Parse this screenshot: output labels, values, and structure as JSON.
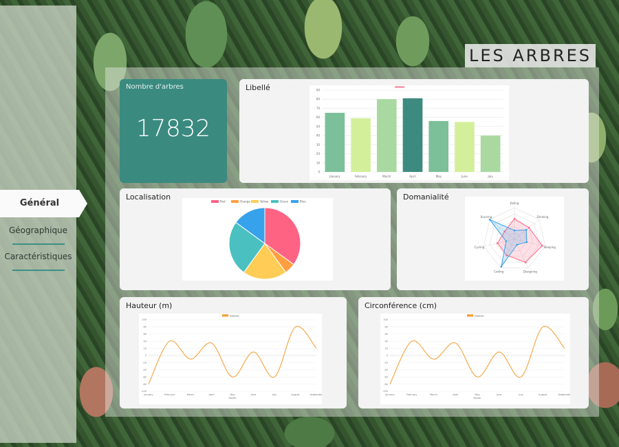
{
  "title": "LES ARBRES",
  "sidebar": {
    "items": [
      {
        "label": "Général",
        "active": true
      },
      {
        "label": "Géographique",
        "active": false
      },
      {
        "label": "Caractéristiques",
        "active": false
      }
    ]
  },
  "cards": {
    "count": {
      "title": "Nombre d'arbres",
      "value": "17832"
    },
    "libelle": {
      "title": "Libellé"
    },
    "localisation": {
      "title": "Localisation"
    },
    "domanialite": {
      "title": "Domanialité"
    },
    "hauteur": {
      "title": "Hauteur (m)"
    },
    "circonference": {
      "title": "Circonférence (cm)"
    }
  },
  "colors": {
    "teal": "#3a8a80",
    "bar_green": "#7cc09a",
    "bar_lime": "#d4ef9a",
    "bar_light": "#a9d9a0",
    "bar_dark": "#3c8a80",
    "line_orange": "#f4a23c",
    "pie_red": "#ff6384",
    "pie_orange": "#ff9f40",
    "pie_yellow": "#ffcd56",
    "pie_green": "#4bc0c0",
    "pie_blue": "#36a2eb"
  },
  "chart_data": [
    {
      "id": "libelle",
      "type": "bar",
      "categories": [
        "January",
        "February",
        "March",
        "April",
        "May",
        "June",
        "July"
      ],
      "values": [
        65,
        59,
        80,
        81,
        56,
        55,
        40
      ],
      "ylim": [
        0,
        90
      ],
      "yticks": [
        0,
        10,
        20,
        30,
        40,
        50,
        60,
        70,
        80,
        90
      ]
    },
    {
      "id": "localisation",
      "type": "pie",
      "labels": [
        "Red",
        "Orange",
        "Yellow",
        "Green",
        "Blue"
      ],
      "values": [
        35,
        5,
        20,
        25,
        15
      ],
      "legend": "top"
    },
    {
      "id": "domanialite",
      "type": "radar",
      "axes": [
        "Eating",
        "Drinking",
        "Sleeping",
        "Designing",
        "Coding",
        "Cycling",
        "Running"
      ],
      "series": [
        {
          "values": [
            65,
            59,
            90,
            81,
            56,
            55,
            40
          ]
        },
        {
          "values": [
            28,
            48,
            40,
            19,
            96,
            27,
            100
          ]
        }
      ]
    },
    {
      "id": "hauteur",
      "type": "line",
      "categories": [
        "January",
        "February",
        "March",
        "April",
        "May",
        "June",
        "July",
        "August",
        "September"
      ],
      "values": [
        -80,
        40,
        -10,
        35,
        -60,
        10,
        -60,
        80,
        20
      ],
      "ylim": [
        -100,
        100
      ],
      "yticks": [
        -100,
        -80,
        -60,
        -40,
        -20,
        0,
        20,
        40,
        60,
        80,
        100
      ],
      "series_label": "Dataset",
      "xlabel": "Month"
    },
    {
      "id": "circonference",
      "type": "line",
      "categories": [
        "January",
        "February",
        "March",
        "April",
        "May",
        "June",
        "July",
        "August",
        "September"
      ],
      "values": [
        -80,
        40,
        -10,
        35,
        -60,
        10,
        -60,
        80,
        20
      ],
      "ylim": [
        -100,
        100
      ],
      "yticks": [
        -100,
        -80,
        -60,
        -40,
        -20,
        0,
        20,
        40,
        60,
        80,
        100
      ],
      "series_label": "Dataset",
      "xlabel": "Month"
    }
  ]
}
